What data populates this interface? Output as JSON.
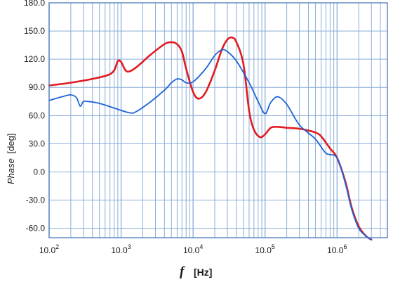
{
  "chart_data": {
    "type": "line",
    "xscale": "log",
    "xlim": [
      100,
      5000000
    ],
    "ylim": [
      -70,
      180
    ],
    "yticks": [
      -60,
      -30,
      0,
      30,
      60,
      90,
      120,
      150,
      180
    ],
    "ytick_labels": [
      "-60.0",
      "-30.0",
      "0.0",
      "30.0",
      "60.0",
      "90.0",
      "120.0",
      "150.0",
      "180.0"
    ],
    "xticks": [
      {
        "value": 100,
        "base": "10.0",
        "exp": "2"
      },
      {
        "value": 1000,
        "base": "10.0",
        "exp": "3"
      },
      {
        "value": 10000,
        "base": "10.0",
        "exp": "4"
      },
      {
        "value": 100000,
        "base": "10.0",
        "exp": "5"
      },
      {
        "value": 1000000,
        "base": "10.0",
        "exp": "6"
      }
    ],
    "xlabel": {
      "symbol": "f",
      "unit": "[Hz]"
    },
    "ylabel": {
      "symbol": "Phase",
      "unit": "[deg]"
    },
    "grid": true,
    "colors": {
      "grid": "#8aaed8",
      "axis": "#4a78b8",
      "red": "#e11b22",
      "blue": "#1e64d6"
    },
    "series": [
      {
        "color": "red",
        "x": [
          100,
          200,
          400,
          650,
          800,
          900,
          1000,
          1200,
          1600,
          2500,
          4000,
          5000,
          6000,
          7000,
          8000,
          10000,
          12000,
          15000,
          20000,
          25000,
          30000,
          35000,
          40000,
          50000,
          60000,
          70000,
          85000,
          100000,
          120000,
          150000,
          200000,
          300000,
          400000,
          500000,
          600000,
          800000,
          1000000,
          1300000,
          1600000,
          2000000,
          2500000,
          3000000
        ],
        "y": [
          92,
          95,
          99,
          103,
          108,
          118,
          117,
          107,
          111,
          124,
          136,
          138,
          136,
          128,
          110,
          85,
          78,
          85,
          108,
          130,
          141,
          143,
          138,
          115,
          65,
          45,
          37,
          40,
          47,
          48,
          47,
          46,
          44,
          42,
          38,
          25,
          15,
          -10,
          -38,
          -58,
          -68,
          -72
        ]
      },
      {
        "color": "blue",
        "x": [
          100,
          150,
          200,
          240,
          270,
          300,
          350,
          500,
          800,
          1300,
          1600,
          2500,
          4000,
          5000,
          6000,
          7000,
          8000,
          10000,
          15000,
          20000,
          25000,
          30000,
          40000,
          60000,
          80000,
          100000,
          120000,
          150000,
          200000,
          300000,
          500000,
          700000,
          1000000,
          1300000,
          1600000,
          2000000,
          2500000,
          3000000
        ],
        "y": [
          76,
          80,
          82,
          79,
          70,
          75,
          75,
          73,
          68,
          63,
          64,
          74,
          87,
          95,
          99,
          98,
          95,
          96,
          110,
          124,
          130,
          128,
          118,
          95,
          75,
          62,
          74,
          80,
          72,
          50,
          35,
          20,
          15,
          -12,
          -40,
          -60,
          -68,
          -72
        ]
      }
    ]
  }
}
